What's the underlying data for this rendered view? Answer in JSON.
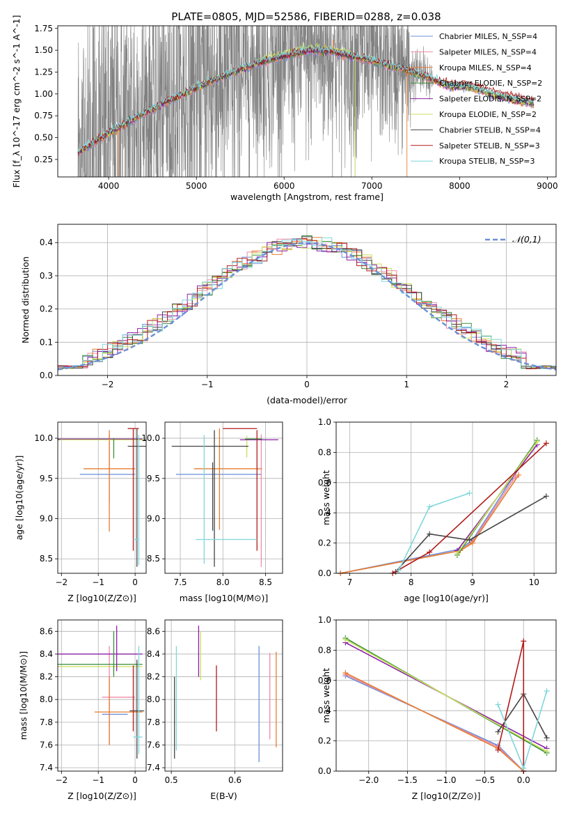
{
  "figure": {
    "title": "PLATE=0805, MJD=52586, FIBERID=0288, z=0.038"
  },
  "colors": {
    "model": [
      "#6b8fd8",
      "#ef8aa6",
      "#e67d2f",
      "#3b8f3a",
      "#8b1fa8",
      "#c8e05a",
      "#444444",
      "#b21a1a",
      "#7fd6dc"
    ],
    "data": "#808080",
    "normal": "#6b8fd8"
  },
  "legend_labels": [
    "Chabrier MILES, N_SSP=4",
    "Salpeter MILES, N_SSP=4",
    "Kroupa MILES, N_SSP=4",
    "Chabrier ELODIE, N_SSP=2",
    "Salpeter ELODIE, N_SSP=2",
    "Kroupa ELODIE, N_SSP=2",
    "Chabrier STELIB, N_SSP=4",
    "Salpeter STELIB, N_SSP=3",
    "Kroupa STELIB, N_SSP=3"
  ],
  "chart_data": [
    {
      "id": "spectrum",
      "type": "line",
      "title": "PLATE=0805, MJD=52586, FIBERID=0288, z=0.038",
      "xlabel": "wavelength [Angstrom, rest frame]",
      "ylabel": "Flux [f_λ 10^-17 erg cm^-2 s^-1 A^-1]",
      "xlim": [
        3420,
        9100
      ],
      "ylim": [
        0.05,
        1.78
      ],
      "xticks": [
        4000,
        5000,
        6000,
        7000,
        8000,
        9000
      ],
      "yticks": [
        0.25,
        0.5,
        0.75,
        1.0,
        1.25,
        1.5,
        1.75
      ],
      "grid": false,
      "legend": "right",
      "x_range": [
        3650,
        8850
      ],
      "continuum": [
        [
          3650,
          0.33
        ],
        [
          3800,
          0.42
        ],
        [
          4000,
          0.55
        ],
        [
          4300,
          0.72
        ],
        [
          4600,
          0.88
        ],
        [
          4900,
          1.02
        ],
        [
          5200,
          1.16
        ],
        [
          5500,
          1.28
        ],
        [
          5800,
          1.38
        ],
        [
          6000,
          1.43
        ],
        [
          6300,
          1.5
        ],
        [
          6550,
          1.48
        ],
        [
          6800,
          1.42
        ],
        [
          7000,
          1.38
        ],
        [
          7300,
          1.3
        ],
        [
          7600,
          1.2
        ],
        [
          7900,
          1.08
        ],
        [
          8100,
          1.08
        ],
        [
          8300,
          1.02
        ],
        [
          8500,
          0.96
        ],
        [
          8850,
          0.88
        ]
      ]
    },
    {
      "id": "residuals",
      "type": "histogram",
      "xlabel": "(data-model)/error",
      "ylabel": "Normed distribution",
      "xlim": [
        -2.5,
        2.5
      ],
      "ylim": [
        0,
        0.455
      ],
      "xticks": [
        -2,
        -1,
        0,
        1,
        2
      ],
      "yticks": [
        0.0,
        0.1,
        0.2,
        0.3,
        0.4
      ],
      "grid": true,
      "legend": "top-right",
      "legend_label": "𝒩(0,1)",
      "bin_width": 0.1
    },
    {
      "id": "age-vs-Z",
      "type": "errorbar",
      "xlabel": "Z [log10(Z/Z⊙)]",
      "ylabel": "age  [log10(age/yr)]",
      "xlim": [
        -2.1,
        0.3
      ],
      "ylim": [
        8.32,
        10.2
      ],
      "xticks": [
        -2,
        -1,
        0
      ],
      "yticks": [
        8.5,
        9.0,
        9.5,
        10.0
      ],
      "grid": true,
      "points": [
        {
          "c": 0,
          "x": -0.45,
          "xe": [
            1.05,
            0.45
          ],
          "y": 9.55,
          "ye": [
            0,
            0
          ]
        },
        {
          "c": 1,
          "x": -0.7,
          "xe": [
            0,
            0
          ],
          "y": 9.5,
          "ye": [
            0.3,
            0.55
          ]
        },
        {
          "c": 2,
          "x": -0.7,
          "xe": [
            0.7,
            0.7
          ],
          "y": 9.62,
          "ye": [
            0.78,
            0.48
          ]
        },
        {
          "c": 3,
          "x": -1.0,
          "xe": [
            1.1,
            1.3
          ],
          "y": 9.98,
          "ye": [
            0,
            0
          ]
        },
        {
          "c": 4,
          "x": -1.1,
          "xe": [
            1.0,
            1.3
          ],
          "y": 9.99,
          "ye": [
            0,
            0
          ]
        },
        {
          "c": 5,
          "x": -1.0,
          "xe": [
            1.05,
            1.25
          ],
          "y": 9.98,
          "ye": [
            0,
            0
          ]
        },
        {
          "c": 3,
          "x": -0.58,
          "xe": [
            0,
            0
          ],
          "y": 9.9,
          "ye": [
            0.15,
            0.1
          ]
        },
        {
          "c": 6,
          "x": 0.05,
          "xe": [
            0.25,
            0.25
          ],
          "y": 9.9,
          "ye": [
            1.5,
            0.22
          ]
        },
        {
          "c": 7,
          "x": -0.05,
          "xe": [
            0.15,
            0.15
          ],
          "y": 10.12,
          "ye": [
            1.52,
            0
          ]
        },
        {
          "c": 8,
          "x": 0.1,
          "xe": [
            0.15,
            0.0
          ],
          "y": 8.74,
          "ye": [
            0.32,
            1.3
          ]
        }
      ]
    },
    {
      "id": "age-vs-mass",
      "type": "errorbar",
      "xlabel": "mass [log10(M/M⊙)]",
      "ylabel": "",
      "xlim": [
        7.32,
        8.7
      ],
      "ylim": [
        8.32,
        10.2
      ],
      "xticks": [
        7.5,
        8.0,
        8.5
      ],
      "yticks": [
        8.5,
        9.0,
        9.5,
        10.0
      ],
      "grid": true,
      "points": [
        {
          "c": 0,
          "x": 8.0,
          "xe": [
            0.55,
            0.45
          ],
          "y": 9.55,
          "ye": [
            0,
            0
          ]
        },
        {
          "c": 2,
          "x": 7.96,
          "xe": [
            0.3,
            0.5
          ],
          "y": 9.62,
          "ye": [
            0.76,
            0.5
          ]
        },
        {
          "c": 1,
          "x": 8.45,
          "xe": [
            0,
            0
          ],
          "y": 9.6,
          "ye": [
            1.2,
            0.45
          ]
        },
        {
          "c": 5,
          "x": 8.28,
          "xe": [
            0,
            0
          ],
          "y": 9.98,
          "ye": [
            0.22,
            0.05
          ]
        },
        {
          "c": 4,
          "x": 8.45,
          "xe": [
            0.25,
            0.2
          ],
          "y": 9.98,
          "ye": [
            0,
            0
          ]
        },
        {
          "c": 3,
          "x": 8.36,
          "xe": [
            0.1,
            0.1
          ],
          "y": 9.99,
          "ye": [
            0,
            0
          ]
        },
        {
          "c": 6,
          "x": 7.9,
          "xe": [
            0.5,
            0.4
          ],
          "y": 9.9,
          "ye": [
            1.5,
            0.2
          ]
        },
        {
          "c": 7,
          "x": 8.0,
          "xe": [
            0.0,
            0.4
          ],
          "y": 10.12,
          "ye": [
            0,
            0
          ]
        },
        {
          "c": 7,
          "x": 8.4,
          "xe": [
            0,
            0
          ],
          "y": 9.5,
          "ye": [
            0.9,
            0.6
          ]
        },
        {
          "c": 8,
          "x": 7.78,
          "xe": [
            0.1,
            0.62
          ],
          "y": 8.74,
          "ye": [
            0.3,
            1.3
          ]
        },
        {
          "c": 6,
          "x": 7.88,
          "xe": [
            0,
            0
          ],
          "y": 9.4,
          "ye": [
            0.55,
            0.3
          ]
        }
      ]
    },
    {
      "id": "weight-vs-age",
      "type": "line",
      "xlabel": "age  [log10(age/yr)]",
      "ylabel": "mass weight",
      "xlim": [
        6.78,
        10.36
      ],
      "ylim": [
        0,
        1
      ],
      "xticks": [
        7,
        8,
        9,
        10
      ],
      "yticks": [
        0.0,
        0.2,
        0.4,
        0.6,
        0.8,
        1.0
      ],
      "grid": true,
      "series": [
        {
          "c": 0,
          "x": [
            6.85,
            8.8,
            9.0,
            9.65
          ],
          "y": [
            0.0,
            0.16,
            0.22,
            0.63
          ]
        },
        {
          "c": 1,
          "x": [
            6.85,
            8.8,
            9.0,
            9.7
          ],
          "y": [
            0.0,
            0.15,
            0.21,
            0.64
          ]
        },
        {
          "c": 2,
          "x": [
            6.85,
            8.8,
            9.0,
            9.75
          ],
          "y": [
            0.0,
            0.15,
            0.2,
            0.65
          ]
        },
        {
          "c": 3,
          "x": [
            8.75,
            10.05
          ],
          "y": [
            0.12,
            0.88
          ]
        },
        {
          "c": 4,
          "x": [
            8.75,
            10.05
          ],
          "y": [
            0.15,
            0.85
          ]
        },
        {
          "c": 5,
          "x": [
            8.75,
            10.05
          ],
          "y": [
            0.13,
            0.87
          ]
        },
        {
          "c": 6,
          "x": [
            7.75,
            8.3,
            8.95,
            10.2
          ],
          "y": [
            0.01,
            0.26,
            0.22,
            0.51
          ]
        },
        {
          "c": 7,
          "x": [
            7.7,
            8.3,
            10.2
          ],
          "y": [
            0.0,
            0.14,
            0.86
          ]
        },
        {
          "c": 8,
          "x": [
            7.8,
            8.3,
            8.95
          ],
          "y": [
            0.02,
            0.44,
            0.53
          ]
        }
      ]
    },
    {
      "id": "mass-vs-Z",
      "type": "errorbar",
      "xlabel": "Z [log10(Z/Z⊙)]",
      "ylabel": "mass [log10(M/M⊙)]",
      "xlim": [
        -2.1,
        0.3
      ],
      "ylim": [
        7.37,
        8.7
      ],
      "xticks": [
        -2,
        -1,
        0
      ],
      "yticks": [
        7.4,
        7.6,
        7.8,
        8.0,
        8.2,
        8.4,
        8.6
      ],
      "grid": true,
      "points": [
        {
          "c": 0,
          "x": -0.5,
          "xe": [
            0.4,
            0.3
          ],
          "y": 7.87,
          "ye": [
            0,
            0
          ]
        },
        {
          "c": 1,
          "x": -0.4,
          "xe": [
            0.5,
            0.4
          ],
          "y": 8.02,
          "ye": [
            0,
            0
          ]
        },
        {
          "c": 2,
          "x": -0.6,
          "xe": [
            0.5,
            0.8
          ],
          "y": 7.89,
          "ye": [
            0,
            0
          ]
        },
        {
          "c": 1,
          "x": -0.7,
          "xe": [
            0,
            0
          ],
          "y": 8.1,
          "ye": [
            0.5,
            0.37
          ]
        },
        {
          "c": 2,
          "x": -0.7,
          "xe": [
            0,
            0
          ],
          "y": 7.9,
          "ye": [
            0.3,
            0.3
          ]
        },
        {
          "c": 3,
          "x": -1.0,
          "xe": [
            1.1,
            1.2
          ],
          "y": 8.31,
          "ye": [
            0,
            0
          ]
        },
        {
          "c": 4,
          "x": -1.0,
          "xe": [
            1.1,
            1.2
          ],
          "y": 8.4,
          "ye": [
            0,
            0
          ]
        },
        {
          "c": 5,
          "x": -1.0,
          "xe": [
            1.1,
            1.2
          ],
          "y": 8.29,
          "ye": [
            0,
            0
          ]
        },
        {
          "c": 3,
          "x": -0.58,
          "xe": [
            0,
            0
          ],
          "y": 8.3,
          "ye": [
            0.1,
            0.3
          ]
        },
        {
          "c": 4,
          "x": -0.5,
          "xe": [
            0,
            0
          ],
          "y": 8.4,
          "ye": [
            0.15,
            0.25
          ]
        },
        {
          "c": 6,
          "x": 0.05,
          "xe": [
            0.2,
            0.2
          ],
          "y": 7.9,
          "ye": [
            0.42,
            0.45
          ]
        },
        {
          "c": 7,
          "x": -0.05,
          "xe": [
            0,
            0
          ],
          "y": 8.0,
          "ye": [
            0.28,
            0.3
          ]
        },
        {
          "c": 8,
          "x": 0.1,
          "xe": [
            0.15,
            0.1
          ],
          "y": 7.67,
          "ye": [
            0.15,
            0.8
          ]
        }
      ]
    },
    {
      "id": "mass-vs-EBV",
      "type": "errorbar",
      "xlabel": "E(B-V)",
      "ylabel": "",
      "xlim": [
        0.49,
        0.675
      ],
      "ylim": [
        7.37,
        8.7
      ],
      "xticks": [
        0.5,
        0.6
      ],
      "yticks": [
        7.4,
        7.6,
        7.8,
        8.0,
        8.2,
        8.4,
        8.6
      ],
      "grid": true,
      "points": [
        {
          "c": 6,
          "x": 0.505,
          "xe": [
            0,
            0
          ],
          "y": 7.9,
          "ye": [
            0.42,
            0.3
          ]
        },
        {
          "c": 8,
          "x": 0.508,
          "xe": [
            0,
            0
          ],
          "y": 7.85,
          "ye": [
            0.3,
            0.62
          ]
        },
        {
          "c": 4,
          "x": 0.543,
          "xe": [
            0,
            0
          ],
          "y": 8.4,
          "ye": [
            0.2,
            0.25
          ]
        },
        {
          "c": 5,
          "x": 0.546,
          "xe": [
            0,
            0
          ],
          "y": 8.37,
          "ye": [
            0.2,
            0.23
          ]
        },
        {
          "c": 7,
          "x": 0.571,
          "xe": [
            0,
            0
          ],
          "y": 8.0,
          "ye": [
            0.28,
            0.3
          ]
        },
        {
          "c": 0,
          "x": 0.638,
          "xe": [
            0,
            0
          ],
          "y": 8.0,
          "ye": [
            0.55,
            0.47
          ]
        },
        {
          "c": 1,
          "x": 0.655,
          "xe": [
            0,
            0
          ],
          "y": 8.05,
          "ye": [
            0.4,
            0.36
          ]
        },
        {
          "c": 2,
          "x": 0.665,
          "xe": [
            0,
            0
          ],
          "y": 8.0,
          "ye": [
            0.42,
            0.42
          ]
        }
      ]
    },
    {
      "id": "weight-vs-Z",
      "type": "line",
      "xlabel": "Z [log10(Z/Z⊙)]",
      "ylabel": "mass weight",
      "xlim": [
        -2.42,
        0.42
      ],
      "ylim": [
        0,
        1
      ],
      "xticks": [
        -2.0,
        -1.5,
        -1.0,
        -0.5,
        0.0
      ],
      "yticks": [
        0.0,
        0.2,
        0.4,
        0.6,
        0.8,
        1.0
      ],
      "grid": true,
      "series": [
        {
          "c": 0,
          "x": [
            -2.3,
            -0.33,
            0.0
          ],
          "y": [
            0.63,
            0.17,
            0.0
          ]
        },
        {
          "c": 1,
          "x": [
            -2.3,
            -0.33,
            0.0
          ],
          "y": [
            0.64,
            0.16,
            0.0
          ]
        },
        {
          "c": 2,
          "x": [
            -2.3,
            -0.33,
            0.0
          ],
          "y": [
            0.65,
            0.15,
            0.0
          ]
        },
        {
          "c": 3,
          "x": [
            -2.3,
            0.3
          ],
          "y": [
            0.88,
            0.12
          ]
        },
        {
          "c": 4,
          "x": [
            -2.3,
            0.3
          ],
          "y": [
            0.85,
            0.15
          ]
        },
        {
          "c": 5,
          "x": [
            -2.3,
            0.3
          ],
          "y": [
            0.87,
            0.13
          ]
        },
        {
          "c": 6,
          "x": [
            -0.33,
            0.0,
            0.3
          ],
          "y": [
            0.26,
            0.51,
            0.22
          ]
        },
        {
          "c": 7,
          "x": [
            -0.33,
            0.0,
            0.0
          ],
          "y": [
            0.14,
            0.86,
            0.0
          ]
        },
        {
          "c": 8,
          "x": [
            -0.33,
            0.0,
            0.3
          ],
          "y": [
            0.44,
            0.02,
            0.53
          ]
        }
      ]
    }
  ]
}
